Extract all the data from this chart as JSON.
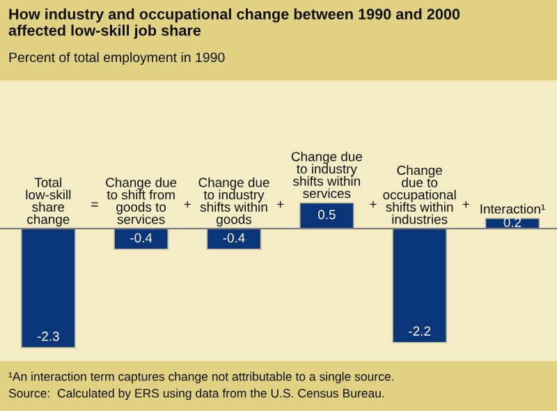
{
  "chart_data": {
    "type": "bar",
    "title": "How industry and occupational change between 1990 and 2000\naffected low-skill job share",
    "subtitle": "Percent of total employment in 1990",
    "categories": [
      "Total\nlow-skill\nshare\nchange",
      "Change due\nto shift from\ngoods to\nservices",
      "Change due\nto industry\nshifts within\ngoods",
      "Change due\nto industry\nshifts within\nservices",
      "Change\ndue to\noccupational\nshifts within\nindustries",
      "Interaction¹"
    ],
    "values": [
      -2.3,
      -0.4,
      -0.4,
      0.5,
      -2.2,
      0.2
    ],
    "color": "#0b3579",
    "data_labels": true,
    "annotations": [
      "=",
      "+",
      "+",
      "+",
      "+",
      "¹An interaction term captures change not attributable to a single source.",
      "Source:  Calculated by ERS using data from the U.S. Census Bureau."
    ]
  }
}
